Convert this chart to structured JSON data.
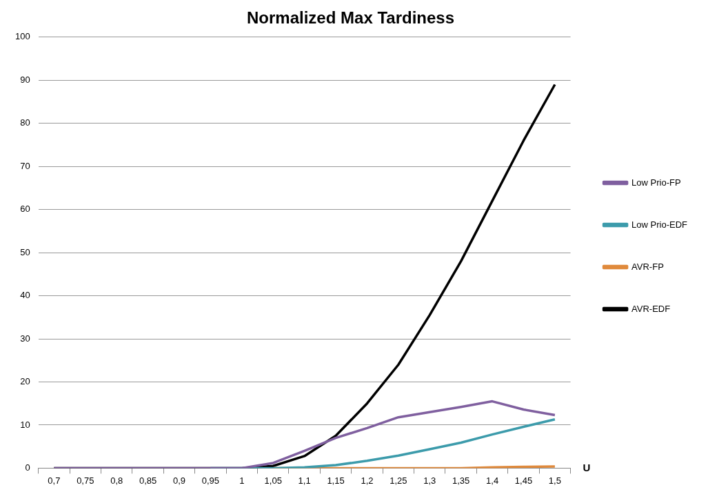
{
  "chart_data": {
    "type": "line",
    "title": "Normalized Max Tardiness",
    "xlabel": "U",
    "categories": [
      "0,7",
      "0,75",
      "0,8",
      "0,85",
      "0,9",
      "0,95",
      "1",
      "1,05",
      "1,1",
      "1,15",
      "1,2",
      "1,25",
      "1,3",
      "1,35",
      "1,4",
      "1,45",
      "1,5"
    ],
    "series": [
      {
        "name": "Low Prio-FP",
        "color": "#7f5f9f",
        "values": [
          0,
          0,
          0,
          0,
          0,
          0,
          0,
          1.2,
          4,
          7,
          9.3,
          11.8,
          13,
          14.2,
          15.5,
          13.6,
          12.3
        ]
      },
      {
        "name": "Low Prio-EDF",
        "color": "#3c9bab",
        "values": [
          null,
          null,
          null,
          null,
          null,
          0,
          0,
          0,
          0.2,
          0.7,
          1.7,
          2.9,
          4.4,
          5.9,
          7.8,
          9.6,
          11.3
        ]
      },
      {
        "name": "AVR-FP",
        "color": "#e08a3c",
        "values": [
          null,
          null,
          null,
          null,
          null,
          null,
          null,
          0,
          0,
          0,
          0,
          0,
          0,
          0,
          0.2,
          0.3,
          0.4
        ]
      },
      {
        "name": "AVR-EDF",
        "color": "#000000",
        "values": [
          0,
          0,
          0,
          0,
          0,
          0,
          0,
          0.5,
          2.8,
          7.5,
          15,
          24,
          35.5,
          48,
          62,
          76,
          89
        ]
      }
    ],
    "ylim": [
      0,
      100
    ],
    "yticks": [
      0,
      10,
      20,
      30,
      40,
      50,
      60,
      70,
      80,
      90,
      100
    ],
    "grid": "y",
    "legend": "right",
    "marker": "none",
    "line_style": "solid"
  }
}
